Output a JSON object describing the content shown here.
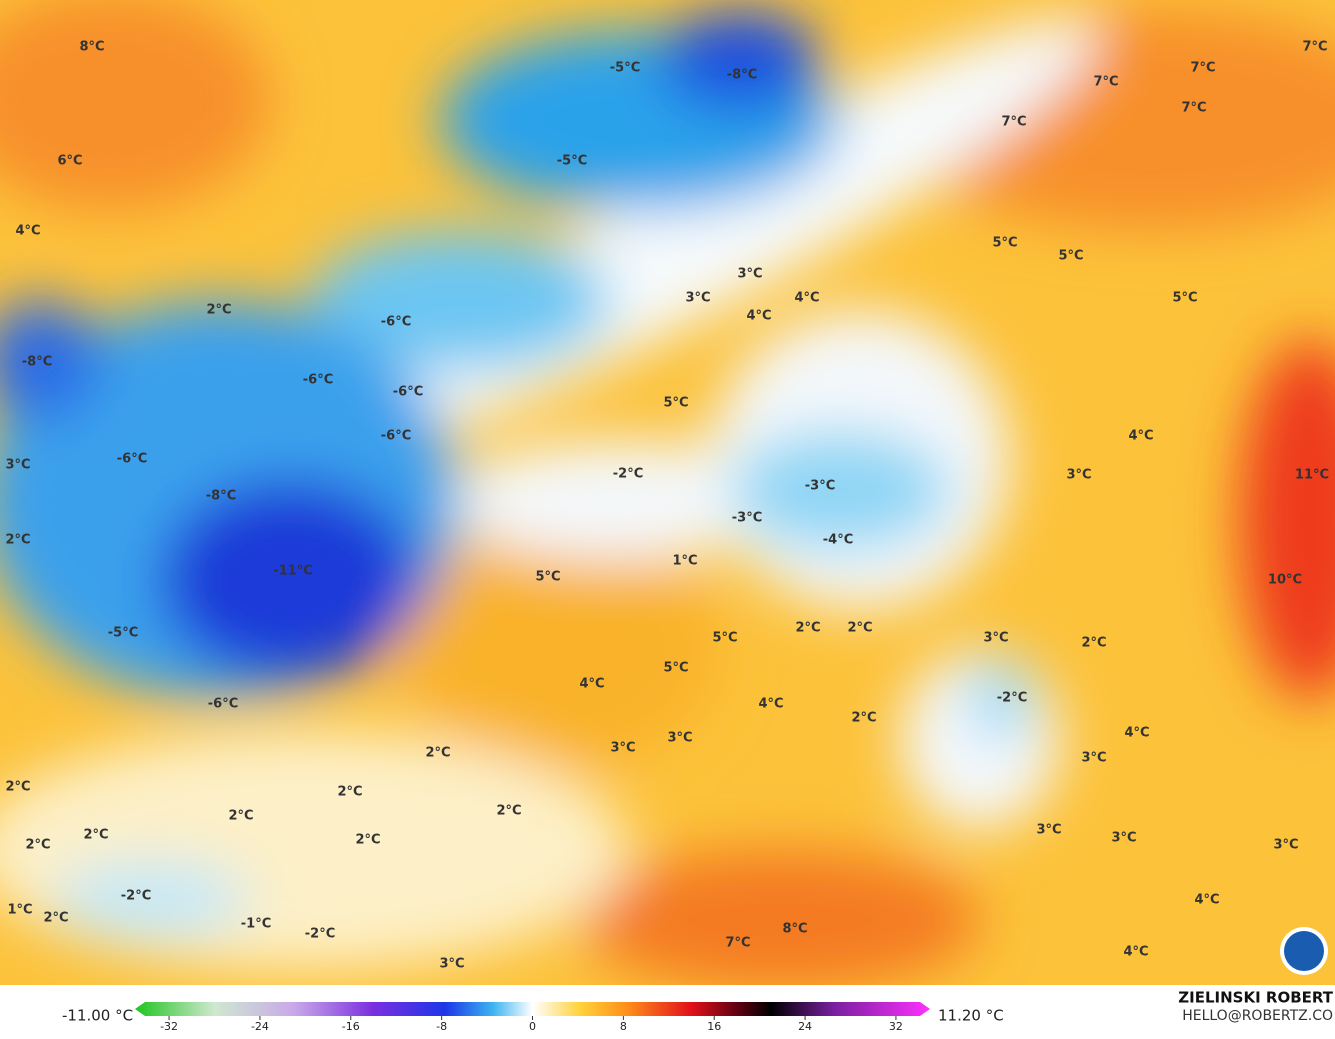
{
  "map": {
    "labels": [
      "8°C",
      "-5°C",
      "-8°C",
      "7°C",
      "7°C",
      "7°C",
      "7°C",
      "7°C",
      "6°C",
      "-5°C",
      "4°C",
      "5°C",
      "5°C",
      "3°C",
      "3°C",
      "4°C",
      "5°C",
      "2°C",
      "4°C",
      "-6°C",
      "-8°C",
      "-6°C",
      "-6°C",
      "5°C",
      "-6°C",
      "4°C",
      "3°C",
      "-6°C",
      "-2°C",
      "3°C",
      "11°C",
      "-3°C",
      "-8°C",
      "-3°C",
      "-4°C",
      "2°C",
      "1°C",
      "-11°C",
      "5°C",
      "10°C",
      "2°C",
      "2°C",
      "-5°C",
      "5°C",
      "3°C",
      "2°C",
      "5°C",
      "4°C",
      "-2°C",
      "-6°C",
      "4°C",
      "2°C",
      "4°C",
      "2°C",
      "3°C",
      "3°C",
      "3°C",
      "2°C",
      "2°C",
      "2°C",
      "2°C",
      "2°C",
      "2°C",
      "3°C",
      "3°C",
      "3°C",
      "2°C",
      "-2°C",
      "4°C",
      "1°C",
      "2°C",
      "-1°C",
      "-2°C",
      "8°C",
      "7°C",
      "4°C",
      "3°C"
    ]
  },
  "colorbar": {
    "min_label": "-11.00 °C",
    "max_label": "11.20 °C",
    "lim": [
      -35,
      35
    ],
    "ticks": [
      -32,
      -24,
      -16,
      -8,
      0,
      8,
      16,
      24,
      32
    ]
  },
  "credit": {
    "name": "ZIELINSKI ROBERT",
    "contact": "HELLO@ROBERTZ.CO"
  }
}
